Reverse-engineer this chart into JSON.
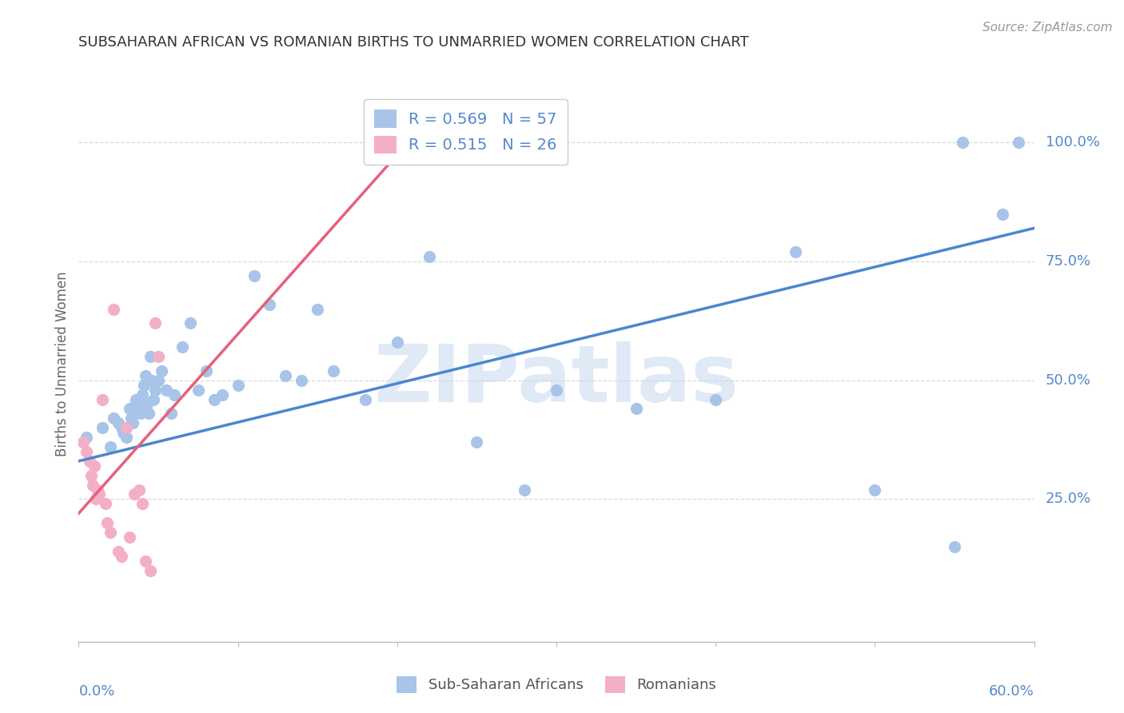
{
  "title": "SUBSAHARAN AFRICAN VS ROMANIAN BIRTHS TO UNMARRIED WOMEN CORRELATION CHART",
  "source": "Source: ZipAtlas.com",
  "ylabel": "Births to Unmarried Women",
  "legend_label1": "Sub-Saharan Africans",
  "legend_label2": "Romanians",
  "R1": 0.569,
  "N1": 57,
  "R2": 0.515,
  "N2": 26,
  "color1": "#a8c4e8",
  "color2": "#f4afc8",
  "trendline1_color": "#4a86d0",
  "trendline2_color": "#e8607a",
  "watermark_text": "ZIPatlas",
  "blue_scatter_x": [
    0.5,
    1.5,
    2.0,
    2.2,
    2.5,
    2.7,
    2.8,
    3.0,
    3.2,
    3.3,
    3.4,
    3.5,
    3.6,
    3.7,
    3.8,
    3.9,
    4.0,
    4.1,
    4.2,
    4.3,
    4.4,
    4.5,
    4.6,
    4.7,
    4.8,
    5.0,
    5.2,
    5.5,
    5.8,
    6.0,
    6.5,
    7.0,
    7.5,
    8.0,
    8.5,
    9.0,
    10.0,
    11.0,
    12.0,
    13.0,
    14.0,
    15.0,
    16.0,
    18.0,
    20.0,
    22.0,
    25.0,
    28.0,
    30.0,
    35.0,
    40.0,
    45.0,
    50.0,
    55.0,
    55.5,
    58.0,
    59.0
  ],
  "blue_scatter_y": [
    38.0,
    40.0,
    36.0,
    42.0,
    41.0,
    40.0,
    39.0,
    38.0,
    44.0,
    42.0,
    41.0,
    43.0,
    46.0,
    45.0,
    44.0,
    43.0,
    47.0,
    49.0,
    51.0,
    45.0,
    43.0,
    55.0,
    50.0,
    46.0,
    48.0,
    50.0,
    52.0,
    48.0,
    43.0,
    47.0,
    57.0,
    62.0,
    48.0,
    52.0,
    46.0,
    47.0,
    49.0,
    72.0,
    66.0,
    51.0,
    50.0,
    65.0,
    52.0,
    46.0,
    58.0,
    76.0,
    37.0,
    27.0,
    48.0,
    44.0,
    46.0,
    77.0,
    27.0,
    15.0,
    100.0,
    85.0,
    100.0
  ],
  "pink_scatter_x": [
    0.3,
    0.5,
    0.7,
    0.8,
    0.9,
    1.0,
    1.1,
    1.2,
    1.3,
    1.5,
    1.7,
    1.8,
    2.0,
    2.2,
    2.5,
    2.7,
    3.0,
    3.2,
    3.5,
    3.8,
    4.0,
    4.2,
    4.5,
    4.8,
    5.0,
    20.0
  ],
  "pink_scatter_y": [
    37.0,
    35.0,
    33.0,
    30.0,
    28.0,
    32.0,
    25.0,
    27.0,
    26.0,
    46.0,
    24.0,
    20.0,
    18.0,
    65.0,
    14.0,
    13.0,
    40.0,
    17.0,
    26.0,
    27.0,
    24.0,
    12.0,
    10.0,
    62.0,
    55.0,
    100.0
  ],
  "xlim": [
    0.0,
    60.0
  ],
  "ylim": [
    -5.0,
    112.0
  ],
  "yticks": [
    25.0,
    50.0,
    75.0,
    100.0
  ],
  "ytick_labels": [
    "25.0%",
    "50.0%",
    "75.0%",
    "100.0%"
  ],
  "xtick_positions": [
    0.0,
    10.0,
    20.0,
    30.0,
    40.0,
    50.0,
    60.0
  ],
  "blue_trend_x": [
    0.0,
    60.0
  ],
  "blue_trend_y": [
    33.0,
    82.0
  ],
  "pink_trend_x": [
    0.0,
    22.0
  ],
  "pink_trend_y": [
    22.0,
    105.0
  ],
  "title_fontsize": 13,
  "tick_label_color": "#5588cc",
  "axis_label_color": "#666666",
  "grid_color": "#d8d8d8",
  "source_color": "#999999"
}
